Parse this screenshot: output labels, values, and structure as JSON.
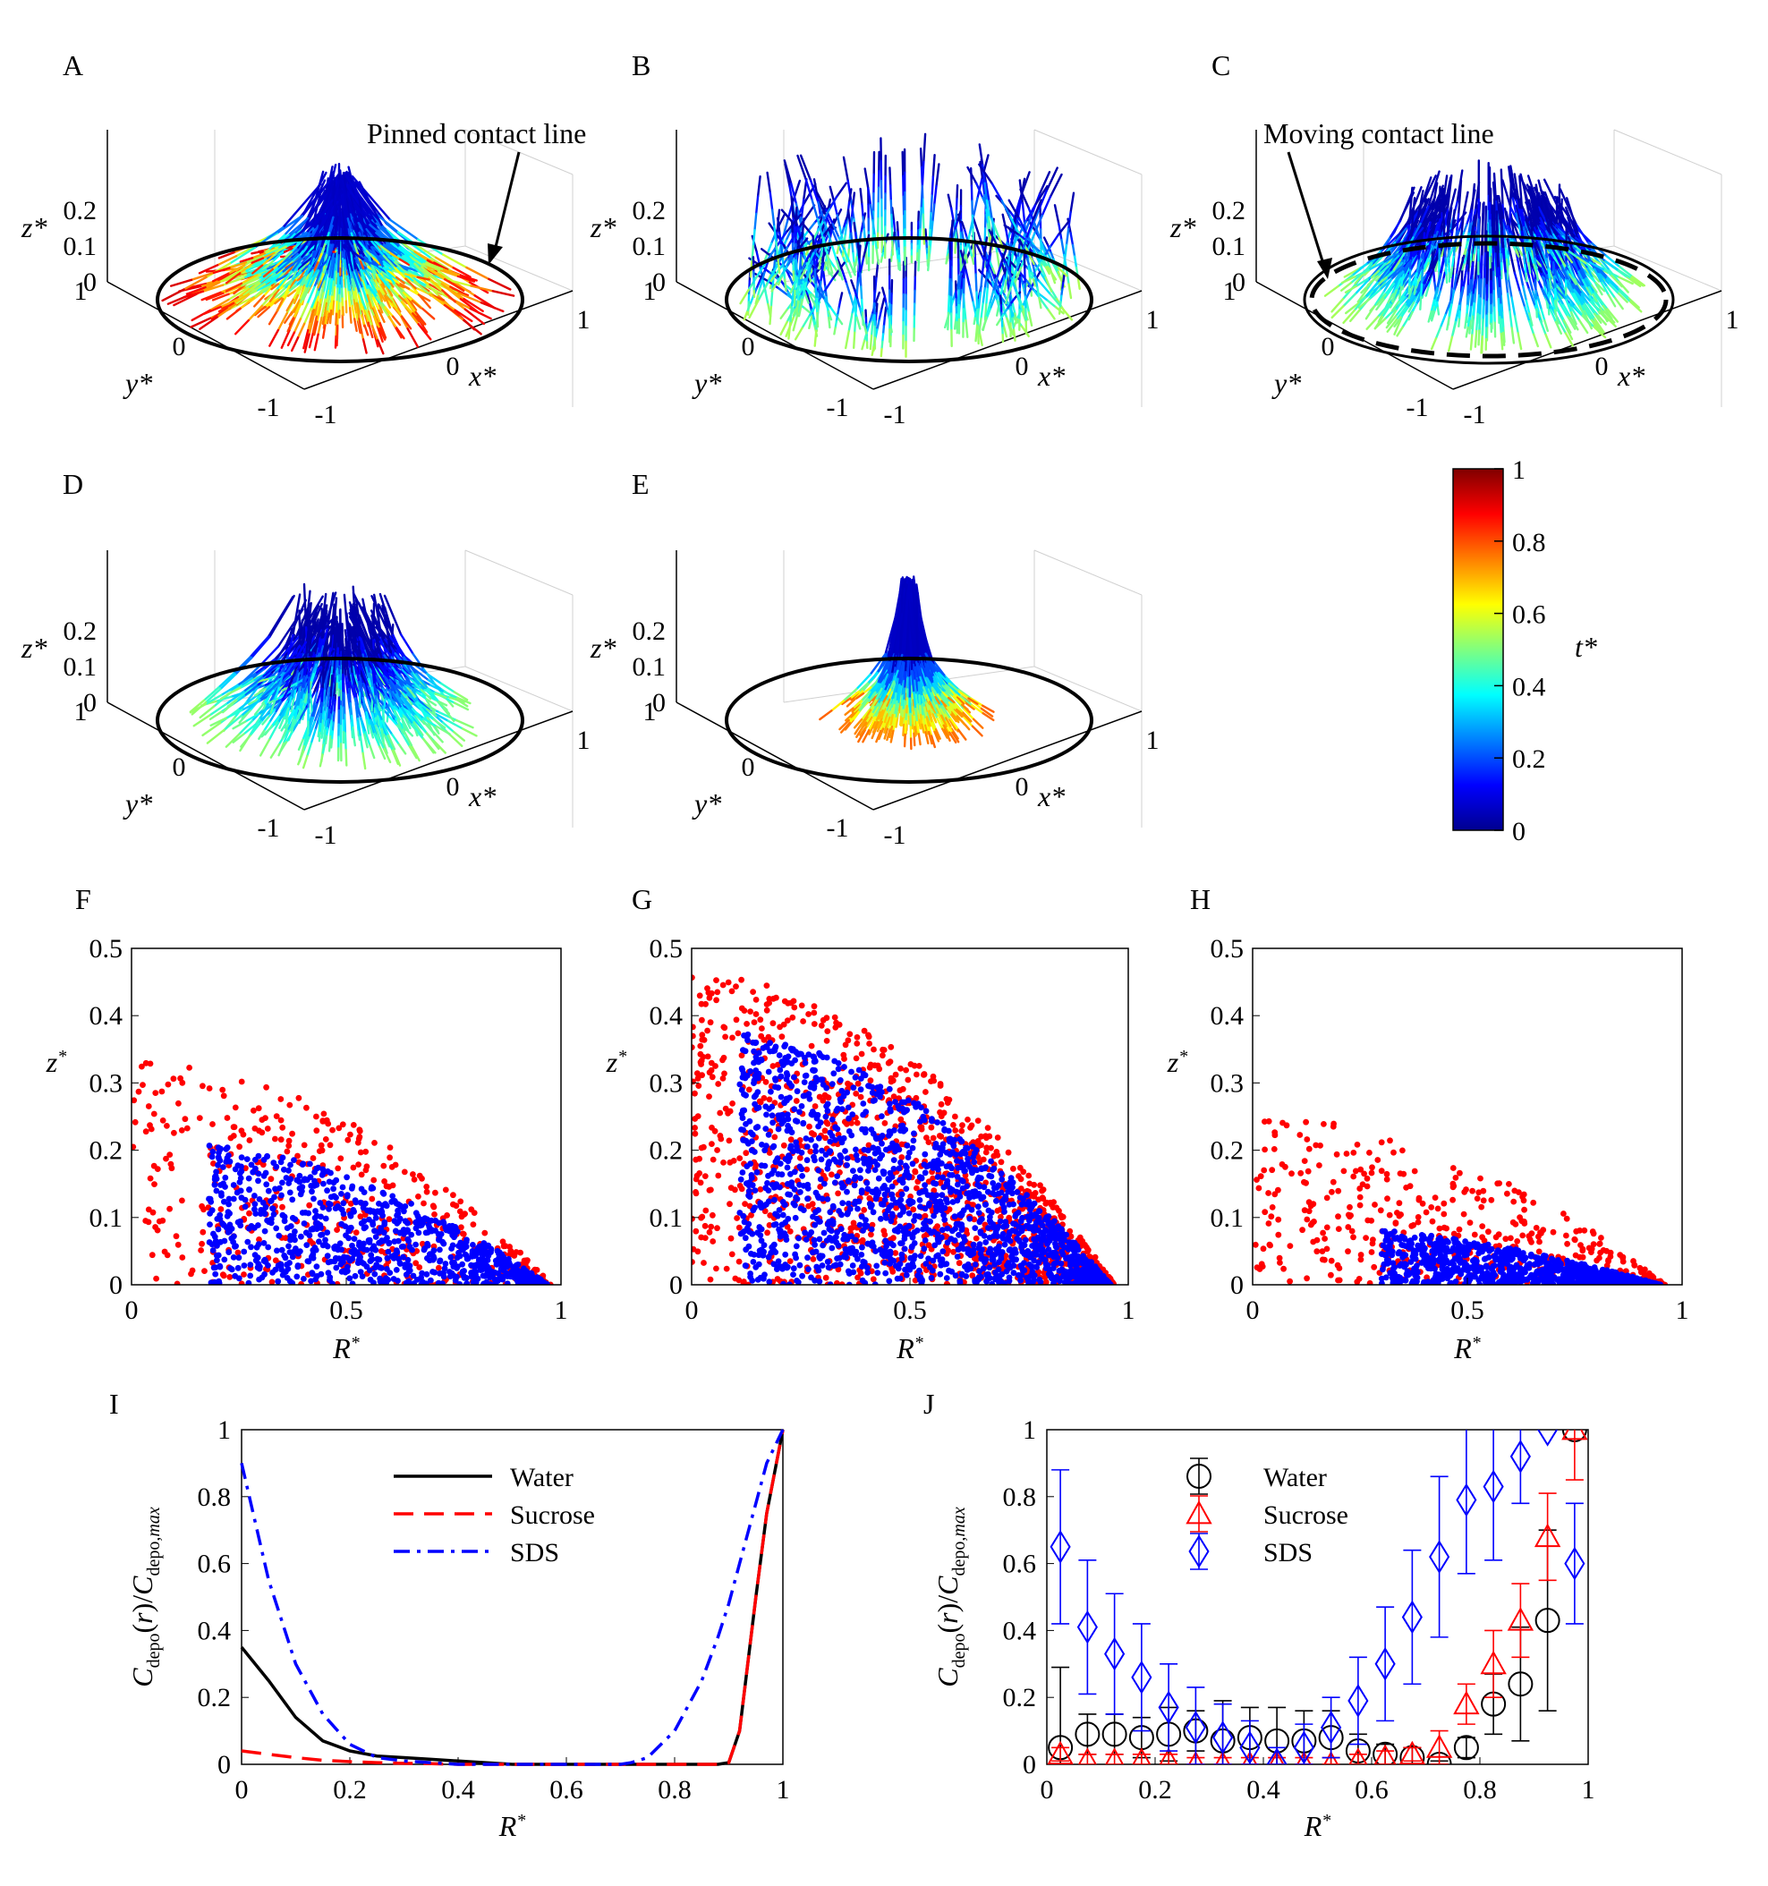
{
  "panels": {
    "A": "A",
    "B": "B",
    "C": "C",
    "D": "D",
    "E": "E",
    "F": "F",
    "G": "G",
    "H": "H",
    "I": "I",
    "J": "J"
  },
  "annotations": {
    "pinned": "Pinned contact line",
    "moving": "Moving contact line"
  },
  "axis_labels_3d": {
    "x": "x*",
    "y": "y*",
    "z": "z*"
  },
  "ticks_3d": {
    "z": [
      "0",
      "0.1",
      "0.2"
    ],
    "y": [
      "1",
      "0",
      "-1"
    ],
    "x": [
      "-1",
      "0",
      "1"
    ]
  },
  "colorbar": {
    "label": "t*",
    "ticks": [
      "0",
      "0.2",
      "0.4",
      "0.6",
      "0.8",
      "1"
    ],
    "colormap": "jet"
  },
  "colors": {
    "early_particles": "#0000ff",
    "late_particles": "#ff0000",
    "water": "#000000",
    "sucrose": "#ff0000",
    "sds": "#0000ff"
  },
  "chart_data": [
    {
      "panel": "F",
      "type": "scatter",
      "xlabel": "R*",
      "ylabel": "z*",
      "xlim": [
        0,
        1
      ],
      "ylim": [
        0,
        0.5
      ],
      "xticks": [
        "0",
        "0.5",
        "1"
      ],
      "yticks": [
        "0",
        "0.1",
        "0.2",
        "0.3",
        "0.4",
        "0.5"
      ],
      "series": [
        {
          "color": "#ff0000",
          "region": {
            "h0": 0.33,
            "rc": 0.98,
            "r_start": 0.0
          }
        },
        {
          "color": "#0000ff",
          "region": {
            "h0": 0.22,
            "rc": 0.97,
            "r_start": 0.18
          }
        }
      ]
    },
    {
      "panel": "G",
      "type": "scatter",
      "xlabel": "R*",
      "ylabel": "z*",
      "xlim": [
        0,
        1
      ],
      "ylim": [
        0,
        0.5
      ],
      "xticks": [
        "0",
        "0.5",
        "1"
      ],
      "yticks": [
        "0",
        "0.1",
        "0.2",
        "0.3",
        "0.4",
        "0.5"
      ],
      "series": [
        {
          "color": "#ff0000",
          "region": {
            "h0": 0.46,
            "rc": 0.97,
            "r_start": 0.0
          }
        },
        {
          "color": "#0000ff",
          "region": {
            "h0": 0.38,
            "rc": 0.96,
            "r_start": 0.11
          }
        }
      ]
    },
    {
      "panel": "H",
      "type": "scatter",
      "xlabel": "R*",
      "ylabel": "z*",
      "xlim": [
        0,
        1
      ],
      "ylim": [
        0,
        0.5
      ],
      "xticks": [
        "0",
        "0.5",
        "1"
      ],
      "yticks": [
        "0",
        "0.1",
        "0.2",
        "0.3",
        "0.4",
        "0.5"
      ],
      "series": [
        {
          "color": "#ff0000",
          "region": {
            "h0": 0.25,
            "rc": 0.96,
            "r_start": 0.0
          }
        },
        {
          "color": "#0000ff",
          "region": {
            "h0": 0.09,
            "rc": 0.95,
            "r_start": 0.3
          }
        }
      ]
    },
    {
      "panel": "I",
      "type": "line",
      "xlabel": "R*",
      "ylabel": "Cdepo(r)/Cdepo,max",
      "xlim": [
        0,
        1
      ],
      "ylim": [
        0,
        1
      ],
      "xticks": [
        "0",
        "0.2",
        "0.4",
        "0.6",
        "0.8",
        "1"
      ],
      "yticks": [
        "0",
        "0.2",
        "0.4",
        "0.6",
        "0.8",
        "1"
      ],
      "legend_position": "top-center",
      "x": [
        0,
        0.05,
        0.1,
        0.15,
        0.2,
        0.25,
        0.3,
        0.35,
        0.4,
        0.5,
        0.6,
        0.7,
        0.72,
        0.75,
        0.8,
        0.85,
        0.88,
        0.9,
        0.92,
        0.95,
        0.97,
        1.0
      ],
      "series": [
        {
          "name": "Water",
          "color": "#000000",
          "dash": "solid",
          "values": [
            0.35,
            0.25,
            0.14,
            0.07,
            0.04,
            0.025,
            0.02,
            0.015,
            0.01,
            0,
            0,
            0,
            0,
            0,
            0,
            0,
            0,
            0.005,
            0.1,
            0.5,
            0.75,
            1.0
          ]
        },
        {
          "name": "Sucrose",
          "color": "#ff0000",
          "dash": "dashed",
          "values": [
            0.04,
            0.03,
            0.02,
            0.012,
            0.008,
            0.005,
            0.003,
            0.002,
            0,
            0,
            0,
            0,
            0,
            0,
            0,
            0,
            0,
            0.005,
            0.1,
            0.5,
            0.75,
            1.0
          ]
        },
        {
          "name": "SDS",
          "color": "#0000ff",
          "dash": "dashdot",
          "values": [
            0.9,
            0.55,
            0.3,
            0.15,
            0.06,
            0.02,
            0.01,
            0.005,
            0,
            0,
            0,
            0,
            0.005,
            0.02,
            0.1,
            0.25,
            0.38,
            0.48,
            0.6,
            0.78,
            0.9,
            1.0
          ]
        }
      ]
    },
    {
      "panel": "J",
      "type": "scatter",
      "xlabel": "R*",
      "ylabel": "Cdepo(r)/Cdepo,max",
      "xlim": [
        0,
        1
      ],
      "ylim": [
        0,
        1
      ],
      "xticks": [
        "0",
        "0.2",
        "0.4",
        "0.6",
        "0.8",
        "1"
      ],
      "yticks": [
        "0",
        "0.2",
        "0.4",
        "0.6",
        "0.8",
        "1"
      ],
      "legend_position": "top-center",
      "series": [
        {
          "name": "Water",
          "color": "#000000",
          "marker": "circle",
          "x": [
            0.025,
            0.075,
            0.125,
            0.175,
            0.225,
            0.275,
            0.325,
            0.375,
            0.425,
            0.475,
            0.525,
            0.575,
            0.625,
            0.675,
            0.725,
            0.775,
            0.825,
            0.875,
            0.925,
            0.975
          ],
          "y": [
            0.05,
            0.09,
            0.09,
            0.08,
            0.09,
            0.1,
            0.07,
            0.08,
            0.07,
            0.07,
            0.08,
            0.04,
            0.03,
            0.02,
            0.0,
            0.05,
            0.18,
            0.24,
            0.43,
            1.0
          ],
          "err": [
            0.24,
            0.06,
            0.06,
            0.06,
            0.08,
            0.06,
            0.12,
            0.09,
            0.1,
            0.09,
            0.08,
            0.05,
            0.03,
            0.03,
            0.01,
            0.03,
            0.09,
            0.17,
            0.27,
            0.0
          ]
        },
        {
          "name": "Sucrose",
          "color": "#ff0000",
          "marker": "triangle",
          "x": [
            0.025,
            0.075,
            0.125,
            0.175,
            0.225,
            0.275,
            0.325,
            0.375,
            0.425,
            0.475,
            0.525,
            0.575,
            0.625,
            0.675,
            0.725,
            0.775,
            0.825,
            0.875,
            0.925,
            0.975
          ],
          "y": [
            0.03,
            0.01,
            0.01,
            0.01,
            0.01,
            0.0,
            0.0,
            0.0,
            0.0,
            0.0,
            0.0,
            0.01,
            0.02,
            0.03,
            0.05,
            0.18,
            0.3,
            0.43,
            0.68,
            1.0
          ],
          "err": [
            0.02,
            0.02,
            0.02,
            0.02,
            0.02,
            0.02,
            0.02,
            0.02,
            0.02,
            0.02,
            0.02,
            0.02,
            0.02,
            0.02,
            0.05,
            0.06,
            0.1,
            0.11,
            0.13,
            0.15
          ]
        },
        {
          "name": "SDS",
          "color": "#0000ff",
          "marker": "diamond",
          "x": [
            0.025,
            0.075,
            0.125,
            0.175,
            0.225,
            0.275,
            0.325,
            0.375,
            0.425,
            0.475,
            0.525,
            0.575,
            0.625,
            0.675,
            0.725,
            0.775,
            0.825,
            0.875,
            0.925,
            0.975
          ],
          "y": [
            0.65,
            0.41,
            0.33,
            0.26,
            0.17,
            0.11,
            0.08,
            0.05,
            0.0,
            0.05,
            0.11,
            0.19,
            0.3,
            0.44,
            0.62,
            0.79,
            0.83,
            0.92,
            1.0,
            0.6
          ],
          "err": [
            0.23,
            0.2,
            0.18,
            0.16,
            0.13,
            0.12,
            0.1,
            0.08,
            0.05,
            0.07,
            0.09,
            0.13,
            0.17,
            0.2,
            0.24,
            0.22,
            0.22,
            0.14,
            0.0,
            0.18
          ]
        }
      ]
    }
  ]
}
